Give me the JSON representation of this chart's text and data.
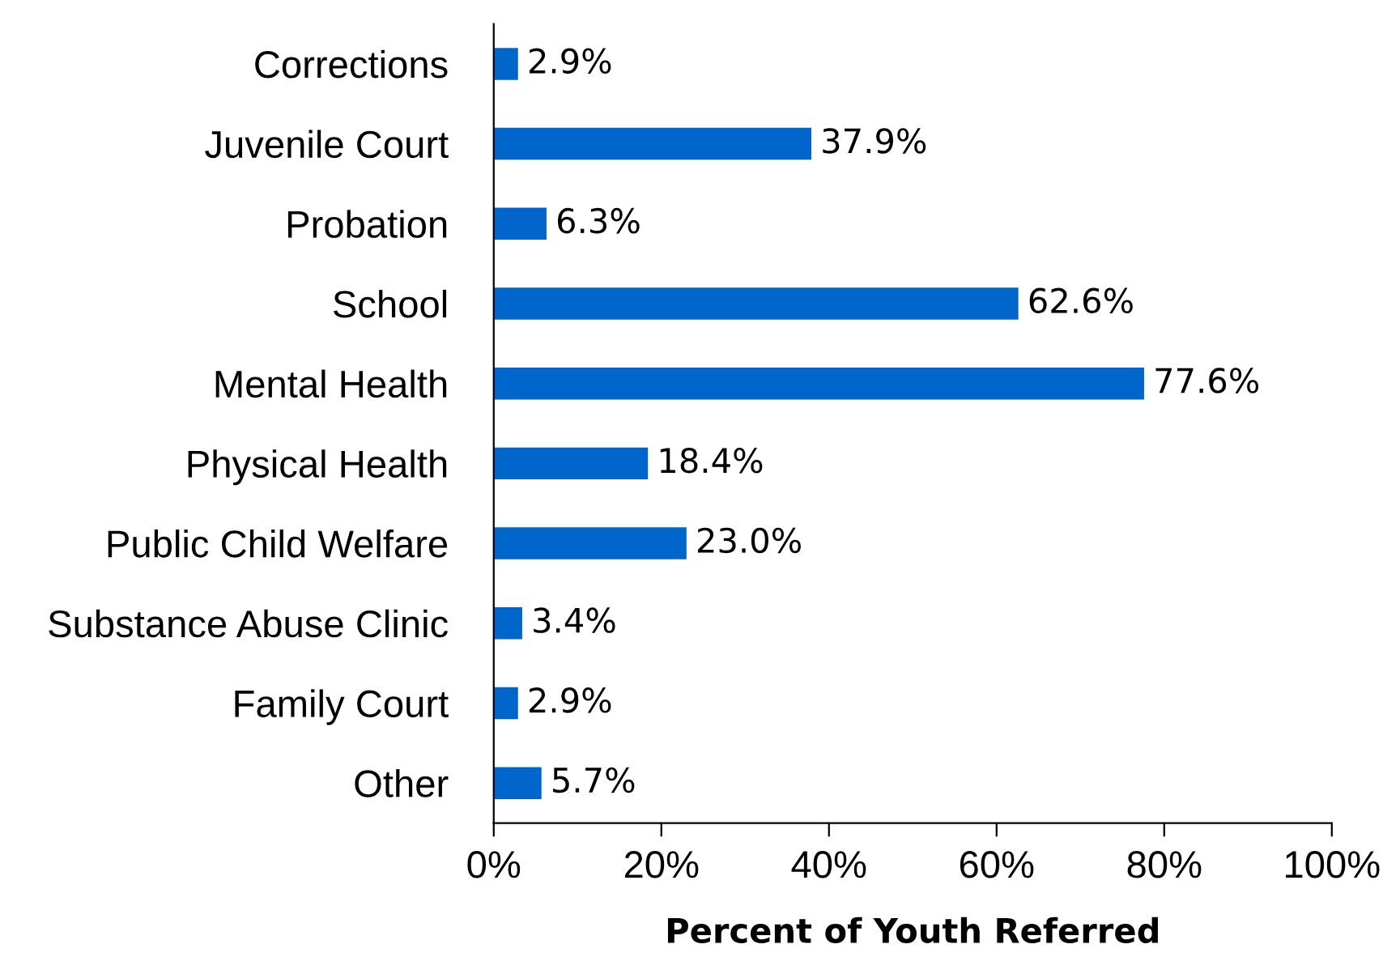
{
  "chart_data": {
    "type": "bar",
    "orientation": "horizontal",
    "xlabel": "Percent of Youth Referred",
    "categories": [
      "Corrections",
      "Juvenile Court",
      "Probation",
      "School",
      "Mental Health",
      "Physical Health",
      "Public Child Welfare",
      "Substance Abuse Clinic",
      "Family Court",
      "Other"
    ],
    "values": [
      2.9,
      37.9,
      6.3,
      62.6,
      77.6,
      18.4,
      23.0,
      3.4,
      2.9,
      5.7
    ],
    "value_labels": [
      "2.9%",
      "37.9%",
      "6.3%",
      "62.6%",
      "77.6%",
      "18.4%",
      "23.0%",
      "3.4%",
      "2.9%",
      "5.7%"
    ],
    "color": "#0066cc",
    "xlim": [
      0,
      100
    ],
    "xticks": [
      {
        "value": 0,
        "label": "0%"
      },
      {
        "value": 20,
        "label": "20%"
      },
      {
        "value": 40,
        "label": "40%"
      },
      {
        "value": 60,
        "label": "60%"
      },
      {
        "value": 80,
        "label": "80%"
      },
      {
        "value": 100,
        "label": "100%"
      }
    ],
    "grid": false,
    "legend": false
  }
}
